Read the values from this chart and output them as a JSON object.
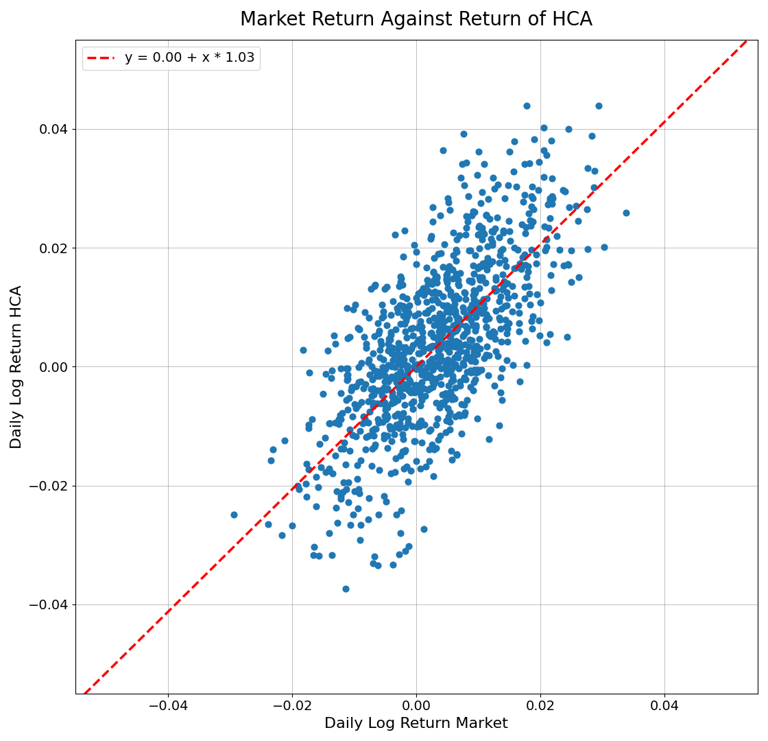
{
  "title": "Market Return Against Return of HCA",
  "xlabel": "Daily Log Return Market",
  "ylabel": "Daily Log Return HCA",
  "intercept": 0.0,
  "slope": 1.03,
  "legend_label": "y = 0.00 + x * 1.03",
  "dot_color": "#1f77b4",
  "line_color": "red",
  "line_style": "--",
  "xlim": [
    -0.055,
    0.055
  ],
  "ylim": [
    -0.055,
    0.055
  ],
  "xticks": [
    -0.04,
    -0.02,
    0.0,
    0.02,
    0.04
  ],
  "yticks": [
    -0.04,
    -0.02,
    0.0,
    0.02,
    0.04
  ],
  "marker_size": 40,
  "grid": true,
  "seed": 42,
  "n_points": 1000,
  "title_fontsize": 20,
  "label_fontsize": 16,
  "tick_fontsize": 14,
  "legend_fontsize": 14,
  "figwidth": 11.2,
  "figheight": 10.8
}
